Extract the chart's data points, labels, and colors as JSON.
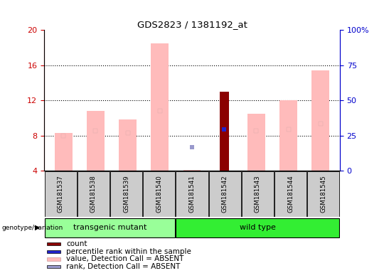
{
  "title": "GDS2823 / 1381192_at",
  "samples": [
    "GSM181537",
    "GSM181538",
    "GSM181539",
    "GSM181540",
    "GSM181541",
    "GSM181542",
    "GSM181543",
    "GSM181544",
    "GSM181545"
  ],
  "groups": [
    "transgenic mutant",
    "transgenic mutant",
    "transgenic mutant",
    "transgenic mutant",
    "wild type",
    "wild type",
    "wild type",
    "wild type",
    "wild type"
  ],
  "pink_bar_heights": [
    8.3,
    10.8,
    9.8,
    18.5,
    4.1,
    null,
    10.5,
    12.0,
    15.4
  ],
  "red_bar_heights": [
    null,
    null,
    null,
    null,
    null,
    13.0,
    null,
    null,
    null
  ],
  "pink_rank_y": [
    8.0,
    8.5,
    8.3,
    10.8,
    null,
    null,
    8.5,
    8.7,
    9.3
  ],
  "blue_rank_y": [
    null,
    null,
    null,
    null,
    null,
    8.7,
    null,
    null,
    null
  ],
  "lightblue_rank_y": [
    null,
    null,
    null,
    null,
    6.7,
    null,
    null,
    null,
    null
  ],
  "ylim_left": [
    4,
    20
  ],
  "ylim_right": [
    0,
    100
  ],
  "yticks_left": [
    4,
    8,
    12,
    16,
    20
  ],
  "yticks_right": [
    0,
    25,
    50,
    75,
    100
  ],
  "ytick_labels_right": [
    "0",
    "25",
    "50",
    "75",
    "100%"
  ],
  "grid_lines": [
    8,
    12,
    16
  ],
  "color_pink_bar": "#ffbbbb",
  "color_red_bar": "#8b0000",
  "color_blue_sq": "#2222cc",
  "color_lightblue_sq": "#9999cc",
  "bar_width": 0.55,
  "red_bar_width": 0.28,
  "left_axis_color": "#cc0000",
  "right_axis_color": "#0000cc",
  "bg_label": "#cccccc",
  "bg_group_transgenic": "#99ff99",
  "bg_group_wild": "#33ee33",
  "groups_info": [
    {
      "label": "transgenic mutant",
      "start": 0,
      "end": 3,
      "color": "#99ff99"
    },
    {
      "label": "wild type",
      "start": 4,
      "end": 8,
      "color": "#33ee33"
    }
  ],
  "legend_items": [
    {
      "label": "count",
      "color": "#8b0000"
    },
    {
      "label": "percentile rank within the sample",
      "color": "#2222cc"
    },
    {
      "label": "value, Detection Call = ABSENT",
      "color": "#ffbbbb"
    },
    {
      "label": "rank, Detection Call = ABSENT",
      "color": "#9999cc"
    }
  ],
  "genotype_label": "genotype/variation"
}
